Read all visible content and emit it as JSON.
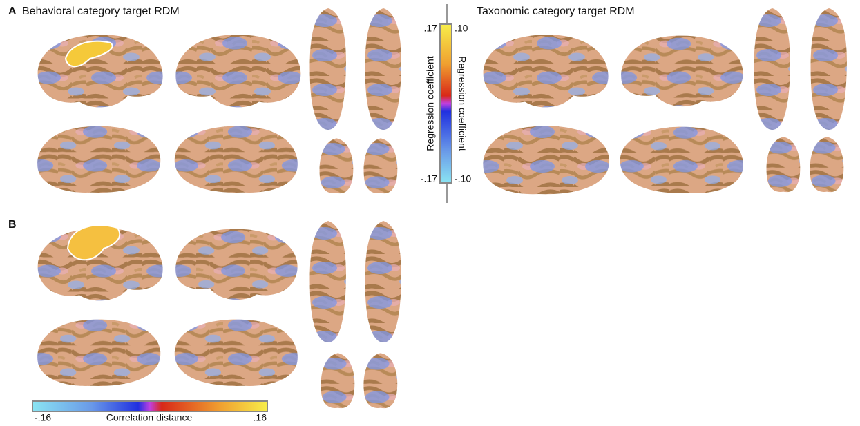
{
  "panels": [
    {
      "label": "A",
      "titles": [
        "Behavioral category target RDM",
        "Taxonomic category target RDM"
      ]
    },
    {
      "label": "B"
    }
  ],
  "regression_colorbar": {
    "left_labels": {
      "top": ".17",
      "bottom": "-.17"
    },
    "right_labels": {
      "top": ".10",
      "bottom": "-.10"
    },
    "titles": [
      "Regression coefficient",
      "Regression coefficient"
    ]
  },
  "correlation_colorbar": {
    "min_label": "-.16",
    "title": "Correlation distance",
    "max_label": ".16"
  }
}
